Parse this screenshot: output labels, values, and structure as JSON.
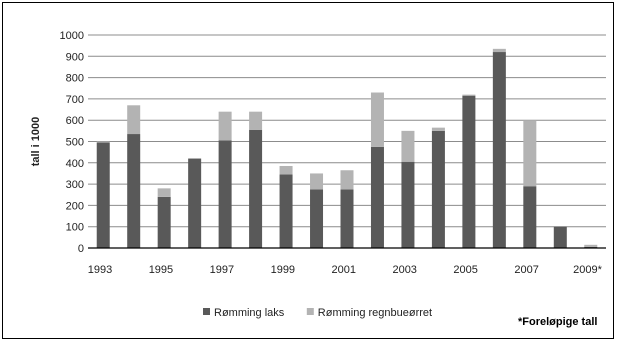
{
  "chart_data": {
    "type": "bar",
    "stacked": true,
    "ylabel": "tall i 1000",
    "ylim": [
      0,
      1000
    ],
    "yticks": [
      0,
      100,
      200,
      300,
      400,
      500,
      600,
      700,
      800,
      900,
      1000
    ],
    "grid": true,
    "legend_position": "bottom",
    "categories": [
      "1993",
      "1994",
      "1995",
      "1996",
      "1997",
      "1998",
      "1999",
      "2000",
      "2001",
      "2002",
      "2003",
      "2004",
      "2005",
      "2006",
      "2007",
      "2008",
      "2009*"
    ],
    "xtick_labels": [
      "1993",
      "",
      "1995",
      "",
      "1997",
      "",
      "1999",
      "",
      "2001",
      "",
      "2003",
      "",
      "2005",
      "",
      "2007",
      "",
      "2009*"
    ],
    "series": [
      {
        "name": "Rømming laks",
        "color": "#595959",
        "values": [
          495,
          535,
          240,
          420,
          505,
          555,
          345,
          275,
          275,
          475,
          405,
          550,
          715,
          920,
          290,
          100,
          5
        ]
      },
      {
        "name": "Rømming regnbueørret",
        "color": "#b3b3b3",
        "values": [
          5,
          135,
          40,
          0,
          135,
          85,
          40,
          75,
          90,
          255,
          145,
          15,
          5,
          15,
          310,
          0,
          10
        ]
      }
    ],
    "footnote": "*Foreløpige tall",
    "axis_color": "#000000",
    "grid_color": "#8c8c8c"
  }
}
